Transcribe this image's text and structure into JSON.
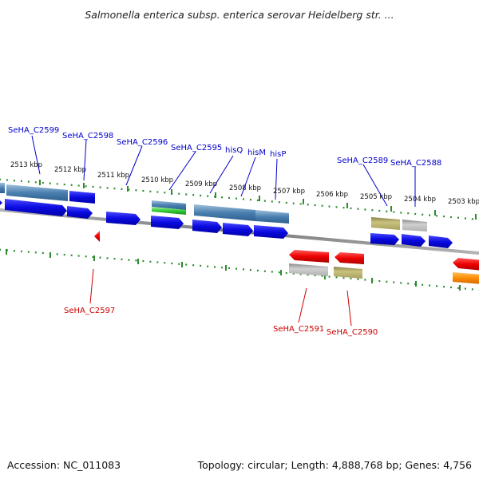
{
  "title": "Salmonella enterica subsp. enterica serovar Heidelberg str. ...",
  "footer": {
    "accession": "Accession: NC_011083",
    "summary": "Topology: circular; Length: 4,888,768 bp; Genes: 4,756"
  },
  "colors": {
    "backbone": "#888888",
    "tick": "#2e8b2e",
    "label_top": "#0000cc",
    "label_bottom": "#cc0000",
    "gene_blue": "#1010e8",
    "gene_red": "#ee0000",
    "gene_steel": "#4a7fb0",
    "gene_green": "#33cc33",
    "gene_olive": "#bdb66a",
    "gene_gray": "#c0c0c0",
    "gene_orange": "#ff8c00"
  },
  "position_ticks": [
    "2513 kbp",
    "2512 kbp",
    "2511 kbp",
    "2510 kbp",
    "2509 kbp",
    "2508 kbp",
    "2507 kbp",
    "2506 kbp",
    "2505 kbp",
    "2504 kbp",
    "2503 kbp"
  ],
  "top_gene_labels": [
    "SeHA_C2599",
    "SeHA_C2598",
    "SeHA_C2596",
    "SeHA_C2595",
    "hisQ",
    "hisM",
    "hisP",
    "SeHA_C2589",
    "SeHA_C2588"
  ],
  "bottom_gene_labels": [
    "SeHA_C2597",
    "SeHA_C2591",
    "SeHA_C2590"
  ]
}
